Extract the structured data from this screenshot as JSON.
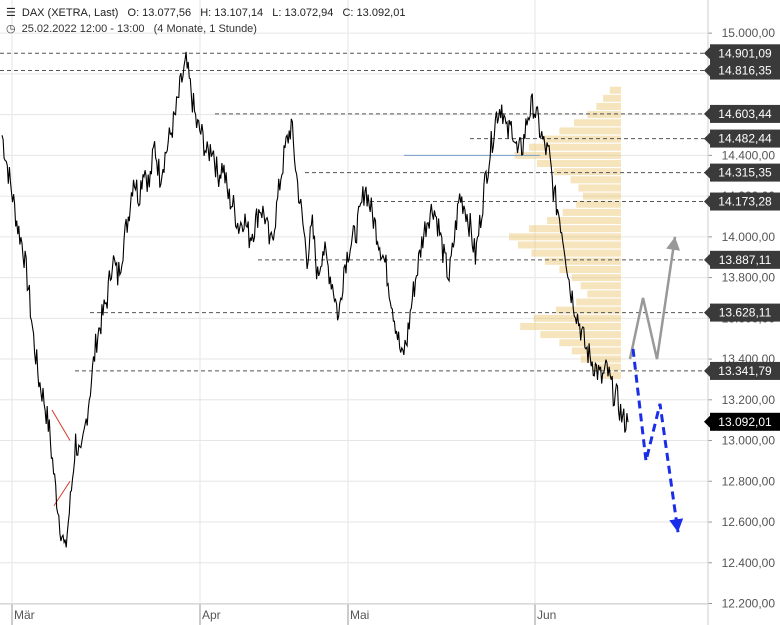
{
  "header": {
    "symbol": "DAX (XETRA, Last)",
    "open": "O: 13.077,56",
    "high": "H: 13.107,14",
    "low": "L: 13.072,94",
    "close": "C: 13.092,01",
    "datetime": "25.02.2022 12:00 - 13:00",
    "range": "(4 Monate, 1 Stunde)"
  },
  "chart_data": {
    "type": "line",
    "title": "DAX (XETRA, Last)",
    "xlabel": "",
    "ylabel": "",
    "ylim": [
      12150,
      15100
    ],
    "x_ticks": [
      "Mär",
      "Apr",
      "Mai",
      "Jun"
    ],
    "y_ticks": [
      12200,
      12400,
      12600,
      12800,
      13000,
      13200,
      13400,
      13600,
      13800,
      14000,
      14200,
      14400,
      14600,
      14800,
      15000
    ],
    "y_tick_labels": [
      "12.200,00",
      "12.400,00",
      "12.600,00",
      "12.800,00",
      "13.000,00",
      "13.200,00",
      "13.400,00",
      "13.600,00",
      "13.800,00",
      "14.000,00",
      "14.200,00",
      "14.400,00",
      "14.600,00",
      "14.800,00",
      "15.000,00"
    ],
    "grid": true,
    "levels": [
      {
        "value": 14901.09,
        "label": "14.901,09"
      },
      {
        "value": 14816.35,
        "label": "14.816,35"
      },
      {
        "value": 14603.44,
        "label": "14.603,44"
      },
      {
        "value": 14482.44,
        "label": "14.482,44"
      },
      {
        "value": 14315.35,
        "label": "14.315,35"
      },
      {
        "value": 14173.28,
        "label": "14.173,28"
      },
      {
        "value": 13887.11,
        "label": "13.887,11"
      },
      {
        "value": 13628.11,
        "label": "13.628,11"
      },
      {
        "value": 13341.79,
        "label": "13.341,79"
      }
    ],
    "last_price": {
      "value": 13092.01,
      "label": "13.092,01"
    },
    "series": [
      {
        "values": [
          14500,
          14350,
          14200,
          14050,
          13950,
          13750,
          13500,
          13300,
          13200,
          13050,
          12800,
          12600,
          12450,
          12700,
          13000,
          12900,
          13100,
          13300,
          13500,
          13600,
          13700,
          13900,
          13800,
          13950,
          14100,
          14300,
          14200,
          14350,
          14250,
          14450,
          14300,
          14400,
          14500,
          14600,
          14750,
          14850,
          14700,
          14550,
          14500,
          14400,
          14450,
          14300,
          14350,
          14200,
          14150,
          14050,
          14100,
          14000,
          14050,
          14150,
          14100,
          13950,
          14100,
          14300,
          14450,
          14550,
          14300,
          14100,
          13900,
          14050,
          13800,
          13950,
          13850,
          13750,
          13600,
          13850,
          13950,
          14000,
          14100,
          14250,
          14150,
          14050,
          13950,
          13850,
          13700,
          13550,
          13400,
          13500,
          13700,
          13850,
          14000,
          14100,
          14150,
          14050,
          13900,
          13800,
          14000,
          14200,
          14150,
          14050,
          13900,
          14100,
          14300,
          14450,
          14600,
          14650,
          14500,
          14550,
          14400,
          14450,
          14600,
          14650,
          14550,
          14450,
          14400,
          14200,
          14100,
          13950,
          13750,
          13650,
          13550,
          13450,
          13400,
          13350,
          13300,
          13350,
          13250,
          13200,
          13100,
          13090
        ]
      }
    ],
    "volume_profile": [
      {
        "price": 14720,
        "strength": 0.1
      },
      {
        "price": 14680,
        "strength": 0.16
      },
      {
        "price": 14640,
        "strength": 0.22
      },
      {
        "price": 14600,
        "strength": 0.3
      },
      {
        "price": 14560,
        "strength": 0.42
      },
      {
        "price": 14520,
        "strength": 0.55
      },
      {
        "price": 14480,
        "strength": 0.7
      },
      {
        "price": 14440,
        "strength": 0.82
      },
      {
        "price": 14400,
        "strength": 0.95
      },
      {
        "price": 14360,
        "strength": 0.75
      },
      {
        "price": 14320,
        "strength": 0.6
      },
      {
        "price": 14280,
        "strength": 0.45
      },
      {
        "price": 14240,
        "strength": 0.38
      },
      {
        "price": 14200,
        "strength": 0.34
      },
      {
        "price": 14160,
        "strength": 0.4
      },
      {
        "price": 14120,
        "strength": 0.52
      },
      {
        "price": 14080,
        "strength": 0.66
      },
      {
        "price": 14040,
        "strength": 0.82
      },
      {
        "price": 14000,
        "strength": 1.0
      },
      {
        "price": 13960,
        "strength": 0.92
      },
      {
        "price": 13920,
        "strength": 0.8
      },
      {
        "price": 13880,
        "strength": 0.68
      },
      {
        "price": 13840,
        "strength": 0.55
      },
      {
        "price": 13800,
        "strength": 0.44
      },
      {
        "price": 13760,
        "strength": 0.36
      },
      {
        "price": 13720,
        "strength": 0.3
      },
      {
        "price": 13680,
        "strength": 0.4
      },
      {
        "price": 13640,
        "strength": 0.58
      },
      {
        "price": 13600,
        "strength": 0.78
      },
      {
        "price": 13560,
        "strength": 0.9
      },
      {
        "price": 13520,
        "strength": 0.72
      },
      {
        "price": 13480,
        "strength": 0.55
      },
      {
        "price": 13440,
        "strength": 0.44
      },
      {
        "price": 13400,
        "strength": 0.36
      },
      {
        "price": 13360,
        "strength": 0.26
      },
      {
        "price": 13320,
        "strength": 0.16
      }
    ],
    "projections": [
      {
        "name": "bullish",
        "color": "#999999",
        "dashed": false,
        "points": [
          [
            13400,
            0
          ],
          [
            13700,
            1
          ],
          [
            13400,
            2
          ],
          [
            14000,
            3
          ]
        ]
      },
      {
        "name": "bearish",
        "color": "#1a2ee8",
        "dashed": true,
        "points": [
          [
            13450,
            0
          ],
          [
            12900,
            1
          ],
          [
            13180,
            2
          ],
          [
            12550,
            3
          ]
        ]
      }
    ],
    "colors": {
      "price_line": "#000000",
      "level_line": "#555555",
      "label_bg": "#3a3a3a",
      "last_bg": "#000000",
      "volume": "#e8c46a",
      "grid": "#e6e6e6",
      "poc_line": "#7a9fc9",
      "triangle": "#d23a2a"
    }
  }
}
